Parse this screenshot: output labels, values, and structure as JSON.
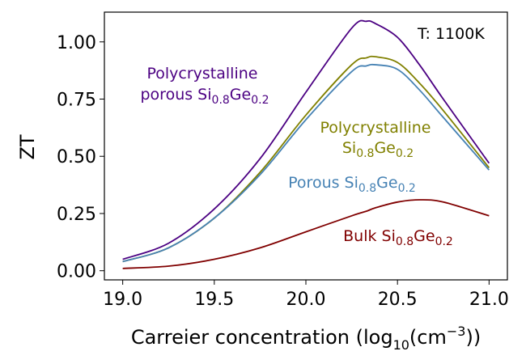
{
  "chart_data": {
    "type": "line",
    "xlabel": {
      "main": "Carreier concentration (log",
      "sub": "10",
      "mid": "(cm",
      "sup": "−3",
      "end": "))"
    },
    "ylabel": "ZT",
    "xlim": [
      18.9,
      21.1
    ],
    "ylim": [
      -0.04,
      1.13
    ],
    "x_ticks": [
      19.0,
      19.5,
      20.0,
      20.5,
      21.0
    ],
    "x_tick_labels": [
      "19.0",
      "19.5",
      "20.0",
      "20.5",
      "21.0"
    ],
    "y_ticks": [
      0.0,
      0.25,
      0.5,
      0.75,
      1.0
    ],
    "y_tick_labels": [
      "0.00",
      "0.25",
      "0.50",
      "0.75",
      "1.00"
    ],
    "temperature_label": "T: 1100K",
    "x": [
      19.0,
      19.25,
      19.5,
      19.75,
      20.0,
      20.25,
      20.33,
      20.38,
      20.5,
      20.62,
      20.75,
      21.0
    ],
    "series": [
      {
        "color": "#4b0082",
        "values": [
          0.05,
          0.12,
          0.27,
          0.49,
          0.78,
          1.06,
          1.09,
          1.08,
          1.02,
          0.9,
          0.75,
          0.47
        ],
        "label": {
          "pre": "Polycrystalline",
          "line2": "porous Si",
          "s1": "0.8",
          "mid": "Ge",
          "s2": "0.2"
        }
      },
      {
        "color": "#808000",
        "values": [
          0.04,
          0.1,
          0.23,
          0.43,
          0.68,
          0.9,
          0.93,
          0.935,
          0.91,
          0.82,
          0.7,
          0.45
        ],
        "label": {
          "pre": "Polycrystalline",
          "line2": "Si",
          "s1": "0.8",
          "mid": "Ge",
          "s2": "0.2"
        }
      },
      {
        "color": "#4682b4",
        "values": [
          0.04,
          0.1,
          0.23,
          0.42,
          0.66,
          0.87,
          0.895,
          0.9,
          0.88,
          0.79,
          0.67,
          0.44
        ],
        "label": {
          "pre": "",
          "line2": "Porous Si",
          "s1": "0.8",
          "mid": "Ge",
          "s2": "0.2"
        }
      },
      {
        "color": "#800000",
        "values": [
          0.01,
          0.02,
          0.05,
          0.1,
          0.17,
          0.24,
          0.26,
          0.275,
          0.3,
          0.31,
          0.3,
          0.24
        ],
        "label": {
          "pre": "",
          "line2": "Bulk Si",
          "s1": "0.8",
          "mid": "Ge",
          "s2": "0.2"
        }
      }
    ]
  }
}
